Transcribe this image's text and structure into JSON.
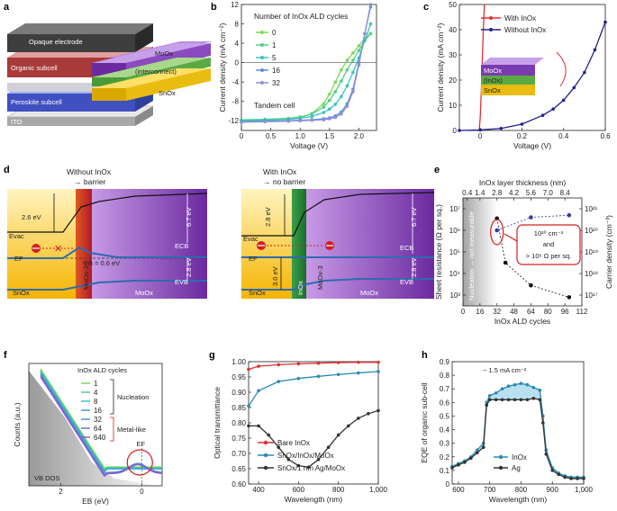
{
  "panel_labels": [
    "a",
    "b",
    "c",
    "d",
    "e",
    "f",
    "g",
    "h"
  ],
  "panel_a": {
    "layers": [
      "Opaque electrode",
      "Organic subcell",
      "Peroskite subcell",
      "ITO"
    ],
    "right_layers": [
      "MoOx",
      "(interconnect)",
      "SnOx"
    ]
  },
  "panel_d": {
    "left_title": [
      "Without InOx",
      "→ barrier"
    ],
    "right_title": [
      "With InOx",
      "→ no barrier"
    ],
    "labels": {
      "evac": "Evac",
      "ef": "EF",
      "ecb": "ECB",
      "evb": "EVB",
      "sno": "SnOx",
      "moo": "MoOx",
      "moo3": "MoOx-3",
      "ino": "InOx",
      "e26": "2.6 eV",
      "e67": "6.7 eV",
      "e28a": "2.8 eV",
      "e28b": "2.8 eV",
      "e28c": "2.8 eV",
      "e30": "3.0 eV",
      "phi": "ΦB = 0.6 eV"
    }
  },
  "chart_data": [
    {
      "panel": "b",
      "type": "line",
      "title": "Number of InOx ALD cycles",
      "annotation": "Tandem cell",
      "xlabel": "Voltage (V)",
      "ylabel": "Current density (mA cm⁻²)",
      "xlim": [
        0,
        2.3
      ],
      "ylim": [
        -14,
        12
      ],
      "xticks": [
        "0",
        "0.5",
        "1.0",
        "1.5",
        "2.0"
      ],
      "yticks": [
        "-12",
        "-8",
        "-4",
        "0",
        "4",
        "8",
        "12"
      ],
      "series": [
        {
          "name": "0",
          "color": "#7ed957",
          "x": [
            0,
            0.4,
            0.8,
            1.0,
            1.2,
            1.4,
            1.5,
            1.6,
            1.7,
            1.8,
            1.9,
            2.0,
            2.1,
            2.2
          ],
          "y": [
            -12,
            -11.9,
            -11.7,
            -11.4,
            -10.5,
            -8.5,
            -6.5,
            -4,
            -1.5,
            0.5,
            2,
            3.5,
            5,
            6
          ]
        },
        {
          "name": "1",
          "color": "#4fd08a",
          "x": [
            0,
            0.4,
            0.8,
            1.0,
            1.2,
            1.4,
            1.5,
            1.6,
            1.7,
            1.8,
            1.9,
            2.0,
            2.1,
            2.2
          ],
          "y": [
            -11.8,
            -11.7,
            -11.5,
            -11.2,
            -10.6,
            -9.2,
            -7.8,
            -6,
            -3.8,
            -1.5,
            0.5,
            2.5,
            4.5,
            6
          ]
        },
        {
          "name": "5",
          "color": "#3cc0c0",
          "x": [
            0,
            0.4,
            0.8,
            1.0,
            1.2,
            1.4,
            1.5,
            1.6,
            1.7,
            1.8,
            1.9,
            2.0,
            2.1,
            2.2
          ],
          "y": [
            -12,
            -11.9,
            -11.7,
            -11.5,
            -11.1,
            -10.3,
            -9.6,
            -8.6,
            -7,
            -4.8,
            -2,
            1,
            4.5,
            8
          ]
        },
        {
          "name": "16",
          "color": "#5b8fd6",
          "x": [
            0,
            0.4,
            0.8,
            1.0,
            1.2,
            1.4,
            1.5,
            1.6,
            1.7,
            1.8,
            1.9,
            2.0,
            2.1,
            2.2
          ],
          "y": [
            -12.2,
            -12.1,
            -12,
            -11.9,
            -11.8,
            -11.6,
            -11.4,
            -11,
            -10.2,
            -8.5,
            -5.5,
            0,
            6,
            11.5
          ]
        },
        {
          "name": "32",
          "color": "#8f8fd9",
          "x": [
            0,
            0.4,
            0.8,
            1.0,
            1.2,
            1.4,
            1.5,
            1.6,
            1.7,
            1.8,
            1.9,
            2.0,
            2.1,
            2.2
          ],
          "y": [
            -12.3,
            -12.2,
            -12.1,
            -12,
            -11.9,
            -11.8,
            -11.6,
            -11.3,
            -10.6,
            -9,
            -6,
            -0.5,
            6,
            12
          ]
        }
      ]
    },
    {
      "panel": "c",
      "type": "line",
      "xlabel": "Voltage (V)",
      "ylabel": "Current density (mA cm⁻²)",
      "xlim": [
        -0.1,
        0.6
      ],
      "ylim": [
        0,
        50
      ],
      "xticks": [
        "0",
        "0.2",
        "0.4",
        "0.6"
      ],
      "yticks": [
        "0",
        "10",
        "20",
        "30",
        "40",
        "50"
      ],
      "inset": [
        "MoOx",
        "(InOx)",
        "SnOx"
      ],
      "series": [
        {
          "name": "With InOx",
          "color": "#e03030",
          "x": [
            -0.005,
            0,
            0.005,
            0.01,
            0.015,
            0.02
          ],
          "y": [
            0,
            5,
            15,
            28,
            40,
            52
          ]
        },
        {
          "name": "Without InOx",
          "color": "#22228a",
          "x": [
            -0.1,
            0,
            0.1,
            0.2,
            0.3,
            0.35,
            0.4,
            0.45,
            0.5,
            0.55,
            0.6
          ],
          "y": [
            0,
            0.2,
            0.8,
            2.5,
            6,
            8.5,
            12,
            17,
            23,
            32,
            43
          ]
        }
      ]
    },
    {
      "panel": "e",
      "type": "scatter",
      "xlabel": "InOx ALD cycles",
      "top_xlabel": "InOx layer thickness (nm)",
      "ylabel": "Sheet resistance (Ω per sq.)",
      "y2label": "Carrier density (cm⁻³)",
      "xticks": [
        "0",
        "16",
        "32",
        "48",
        "64",
        "80",
        "96",
        "112"
      ],
      "top_xticks": [
        "0.4",
        "1.4",
        "2.8",
        "4.2",
        "5.6",
        "7.0",
        "8.4"
      ],
      "yticks": [
        "10³",
        "10⁴",
        "10⁵",
        "10⁶",
        "10⁷"
      ],
      "y2ticks": [
        "10¹⁷",
        "10¹⁸",
        "10¹⁹",
        "10²⁰",
        "10²¹"
      ],
      "shaded_label": "Nucleation → not measurable",
      "callout": [
        "10²⁰ cm⁻³",
        "and",
        "> 10⁶ Ω per sq."
      ],
      "series": [
        {
          "name": "Sheet resistance",
          "color": "#111111",
          "x": [
            32,
            40,
            64,
            100
          ],
          "y_log10": [
            6.55,
            4.5,
            3.45,
            2.9
          ]
        },
        {
          "name": "Carrier density",
          "color": "#3a3aa0",
          "x": [
            32,
            64,
            100
          ],
          "y_log10": [
            20.0,
            20.6,
            20.7
          ]
        }
      ]
    },
    {
      "panel": "f",
      "type": "line",
      "title": "InOx ALD cycles",
      "xlabel": "EB (eV)",
      "ylabel": "Counts (a.u.)",
      "xticks": [
        "2",
        "0"
      ],
      "groups": [
        {
          "label": "Nucleation",
          "members": [
            "1",
            "4",
            "8",
            "16"
          ]
        },
        {
          "label": "Metal-like",
          "members": [
            "32",
            "64",
            "640"
          ]
        }
      ],
      "annotations": [
        "EF",
        "VB DOS"
      ],
      "series": [
        {
          "name": "1",
          "color": "#7ed957"
        },
        {
          "name": "4",
          "color": "#4fd08a"
        },
        {
          "name": "8",
          "color": "#3cc0c0"
        },
        {
          "name": "16",
          "color": "#3aa0d0"
        },
        {
          "name": "32",
          "color": "#5b8fd6"
        },
        {
          "name": "64",
          "color": "#6a70d0"
        },
        {
          "name": "640",
          "color": "#8a5ad0"
        }
      ]
    },
    {
      "panel": "g",
      "type": "line",
      "xlabel": "Wavelength (nm)",
      "ylabel": "Optical transmittance",
      "xlim": [
        350,
        1000
      ],
      "ylim": [
        0.6,
        1.0
      ],
      "xticks": [
        "400",
        "600",
        "800",
        "1,000"
      ],
      "yticks": [
        "0.60",
        "0.65",
        "0.70",
        "0.75",
        "0.80",
        "0.85",
        "0.90",
        "0.95",
        "1.00"
      ],
      "series": [
        {
          "name": "Bare InOx",
          "color": "#e03030",
          "x": [
            350,
            400,
            500,
            600,
            700,
            800,
            900,
            1000
          ],
          "y": [
            0.975,
            0.985,
            0.99,
            0.993,
            0.995,
            0.997,
            0.998,
            0.998
          ]
        },
        {
          "name": "SnOx/InOx/MoOx",
          "color": "#2a8ab0",
          "x": [
            350,
            400,
            500,
            600,
            700,
            800,
            900,
            1000
          ],
          "y": [
            0.855,
            0.905,
            0.935,
            0.945,
            0.952,
            0.958,
            0.963,
            0.968
          ]
        },
        {
          "name": "SnOx/1 nm Ag/MoOx",
          "color": "#333333",
          "x": [
            350,
            400,
            450,
            500,
            550,
            600,
            650,
            700,
            750,
            800,
            850,
            900,
            950,
            1000
          ],
          "y": [
            0.79,
            0.79,
            0.76,
            0.72,
            0.68,
            0.66,
            0.655,
            0.68,
            0.72,
            0.76,
            0.79,
            0.815,
            0.83,
            0.84
          ]
        }
      ]
    },
    {
      "panel": "h",
      "type": "line",
      "xlabel": "Wavelength (nm)",
      "ylabel": "EQE of organic sub-cell",
      "xlim": [
        580,
        1000
      ],
      "ylim": [
        0,
        0.9
      ],
      "xticks": [
        "600",
        "700",
        "800",
        "900",
        "1,000"
      ],
      "yticks": [
        "0",
        "0.1",
        "0.2",
        "0.3",
        "0.4",
        "0.5",
        "0.6",
        "0.7",
        "0.8",
        "0.9"
      ],
      "annotation": "~ 1.5 mA cm⁻²",
      "series": [
        {
          "name": "InOx",
          "color": "#2a8ab0",
          "x": [
            580,
            600,
            620,
            640,
            660,
            680,
            690,
            700,
            720,
            740,
            760,
            780,
            800,
            820,
            840,
            860,
            870,
            880,
            900,
            920,
            940,
            960,
            980,
            1000
          ],
          "y": [
            0.13,
            0.15,
            0.17,
            0.2,
            0.25,
            0.3,
            0.6,
            0.65,
            0.67,
            0.7,
            0.72,
            0.73,
            0.74,
            0.73,
            0.71,
            0.69,
            0.5,
            0.25,
            0.12,
            0.08,
            0.06,
            0.05,
            0.05,
            0.05
          ]
        },
        {
          "name": "Ag",
          "color": "#333333",
          "x": [
            580,
            600,
            620,
            640,
            660,
            680,
            690,
            700,
            720,
            740,
            760,
            780,
            800,
            820,
            840,
            860,
            870,
            880,
            900,
            920,
            940,
            960,
            980,
            1000
          ],
          "y": [
            0.12,
            0.14,
            0.16,
            0.19,
            0.23,
            0.27,
            0.58,
            0.62,
            0.62,
            0.62,
            0.62,
            0.62,
            0.62,
            0.62,
            0.63,
            0.62,
            0.45,
            0.22,
            0.1,
            0.07,
            0.05,
            0.04,
            0.04,
            0.04
          ]
        }
      ]
    }
  ]
}
